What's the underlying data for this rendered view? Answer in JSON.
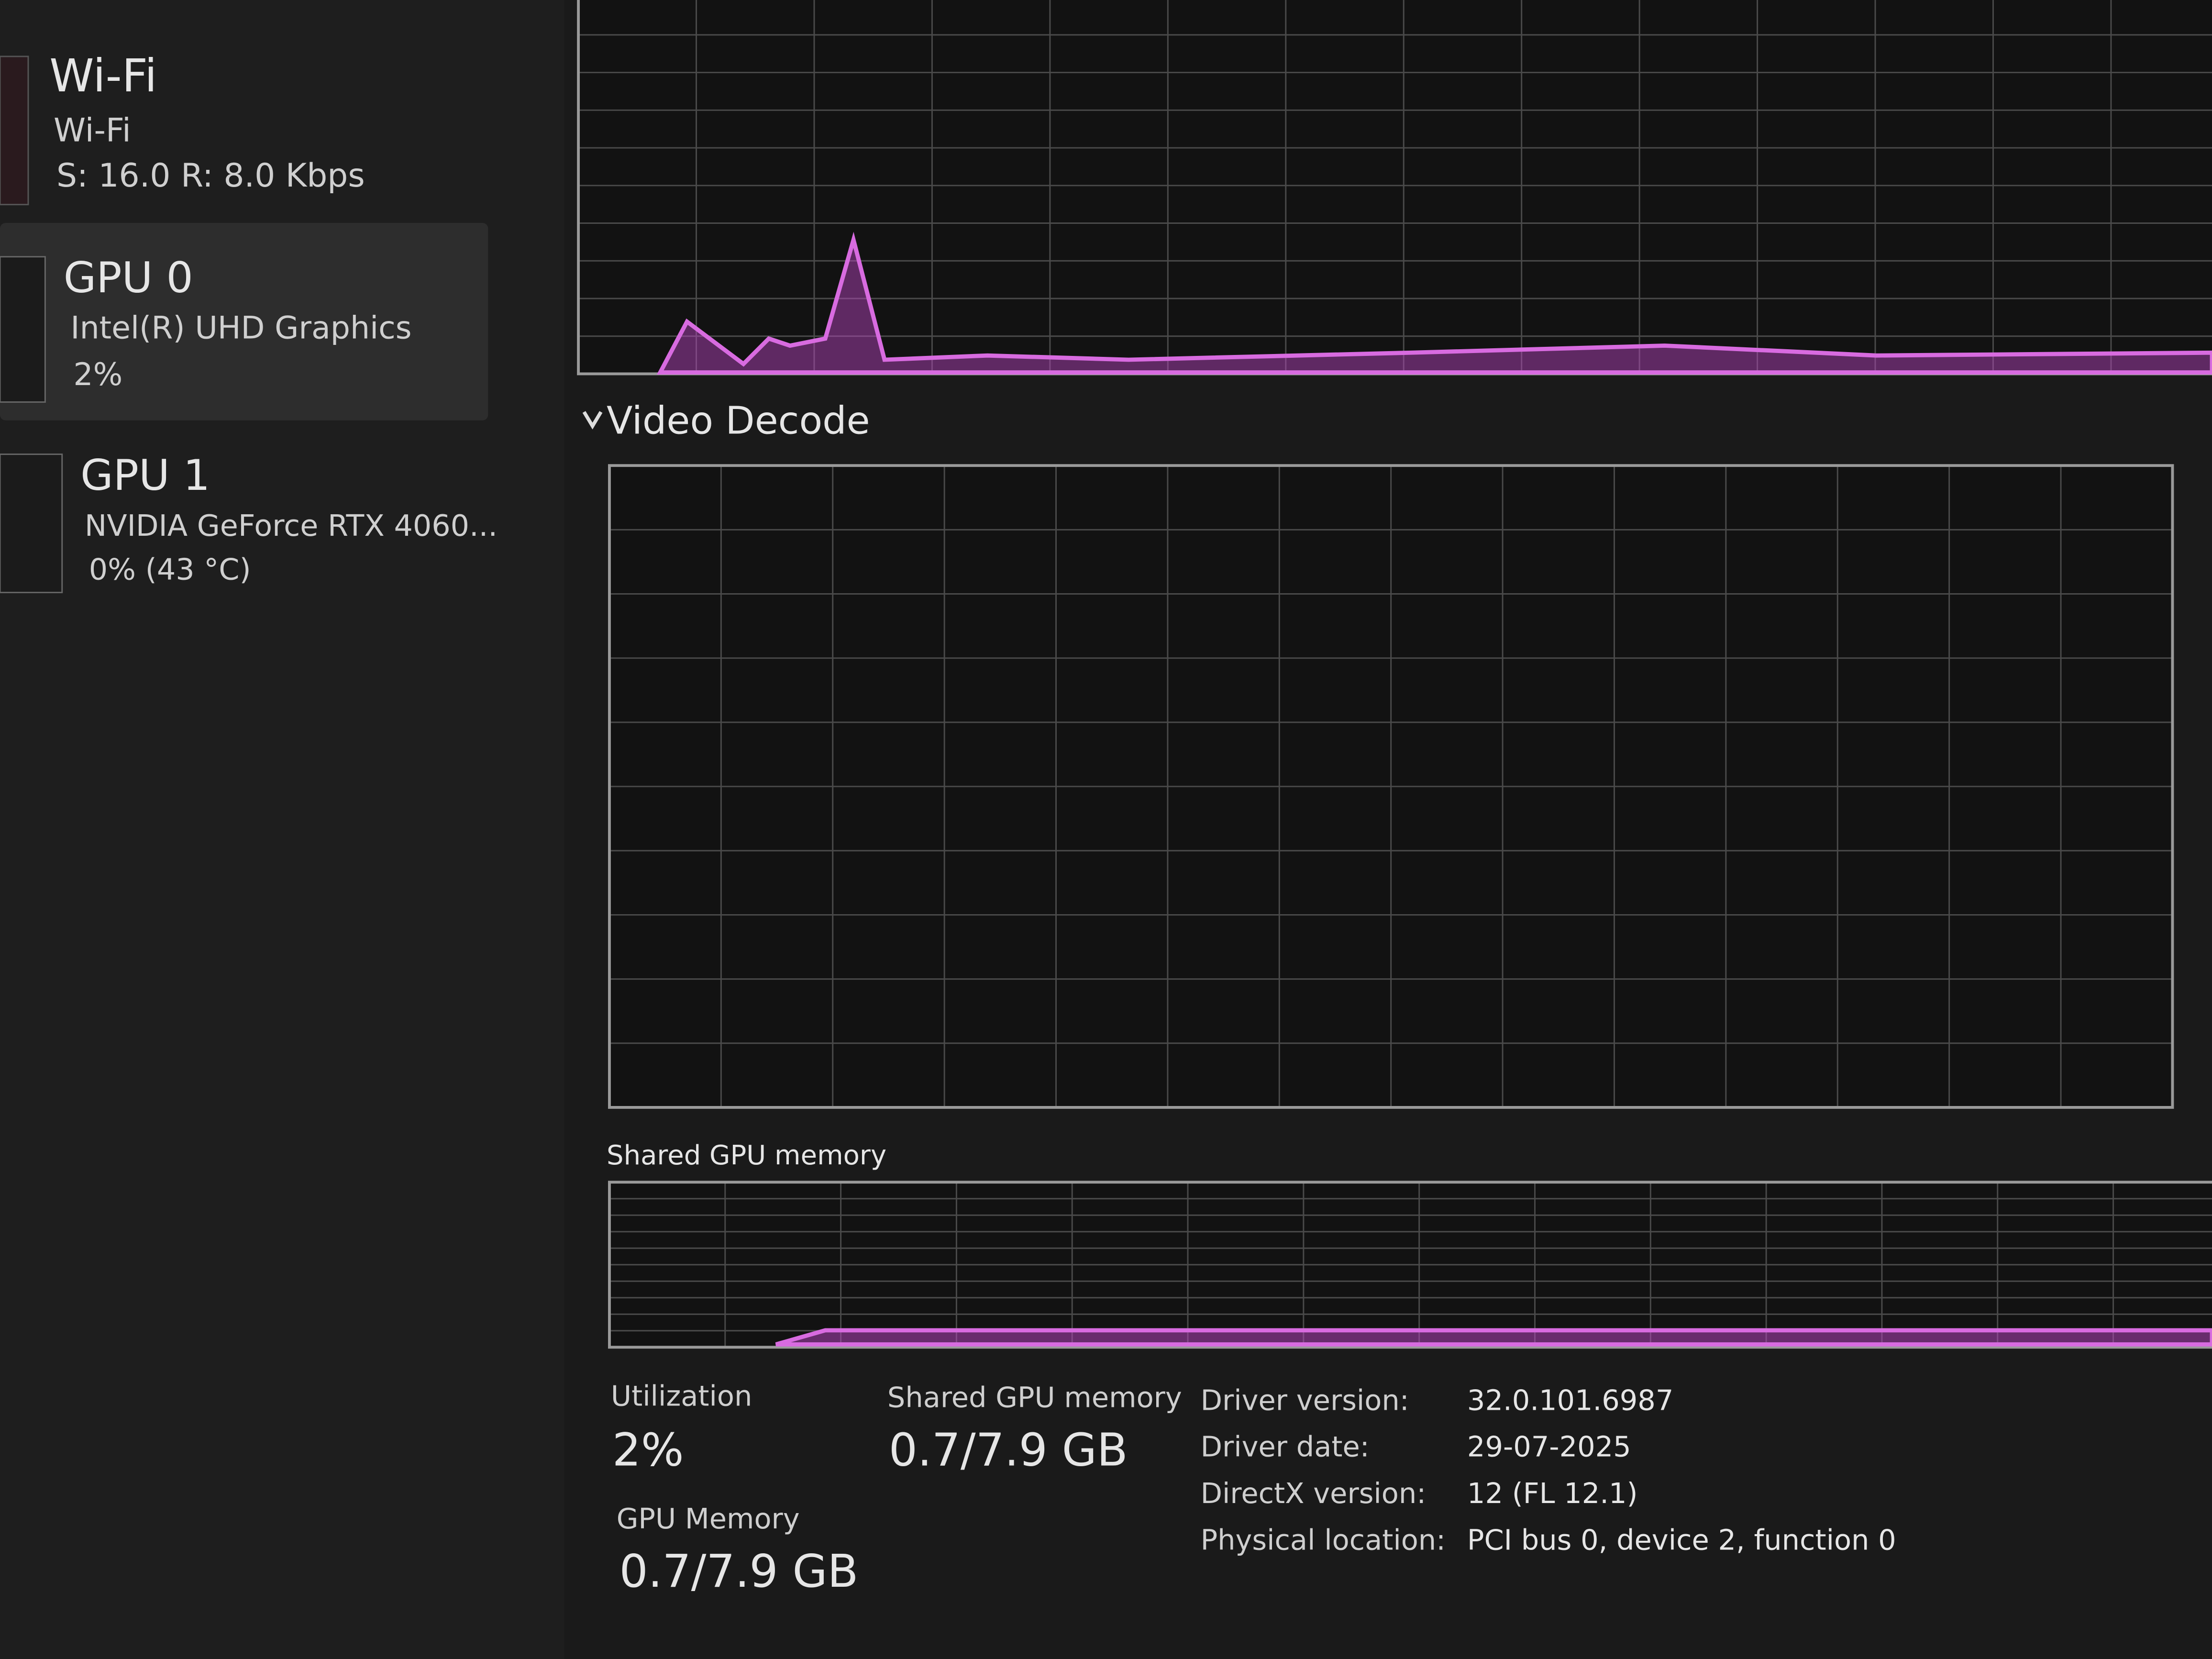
{
  "sidebar": [
    {
      "title": "Wi-Fi",
      "subtitle": "Wi-Fi",
      "detail": "S: 16.0 R: 8.0 Kbps"
    },
    {
      "title": "GPU 0",
      "subtitle": "Intel(R) UHD Graphics",
      "detail": "2%"
    },
    {
      "title": "GPU 1",
      "subtitle": "NVIDIA GeForce RTX 4060...",
      "detail": "0% (43 °C)"
    }
  ],
  "graphs": {
    "video_decode": "Video Decode",
    "shared_memory": "Shared GPU memory"
  },
  "stats": {
    "utilization": {
      "label": "Utilization",
      "value": "2%"
    },
    "shared_memory": {
      "label": "Shared GPU memory",
      "value": "0.7/7.9 GB"
    },
    "gpu_memory": {
      "label": "GPU Memory",
      "value": "0.7/7.9 GB"
    }
  },
  "details": [
    {
      "label": "Driver version:",
      "value": "32.0.101.6987"
    },
    {
      "label": "Driver date:",
      "value": "29-07-2025"
    },
    {
      "label": "DirectX version:",
      "value": "12 (FL 12.1)"
    },
    {
      "label": "Physical location:",
      "value": "PCI bus 0, device 2, function 0"
    }
  ]
}
